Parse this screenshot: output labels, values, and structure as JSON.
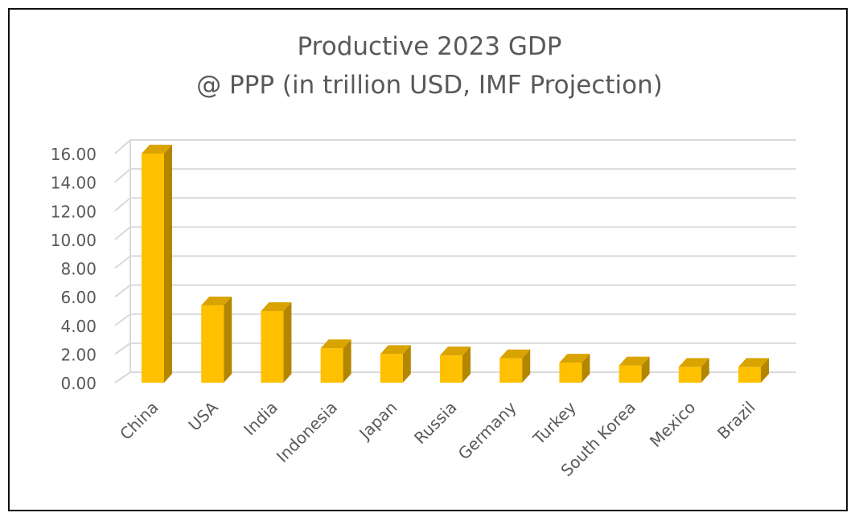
{
  "chart_data": {
    "type": "bar",
    "title_lines": [
      "Productive 2023 GDP",
      "@ PPP (in trillion USD, IMF Projection)"
    ],
    "categories": [
      "China",
      "USA",
      "India",
      "Indonesia",
      "Japan",
      "Russia",
      "Germany",
      "Turkey",
      "South Korea",
      "Mexico",
      "Brazil"
    ],
    "values": [
      16.0,
      5.4,
      5.0,
      2.4,
      2.0,
      1.9,
      1.7,
      1.4,
      1.2,
      1.1,
      1.1
    ],
    "y_ticks": [
      "0.00",
      "2.00",
      "4.00",
      "6.00",
      "8.00",
      "10.00",
      "12.00",
      "14.00",
      "16.00"
    ],
    "ylim": [
      0,
      16
    ],
    "grid": true,
    "legend": "none",
    "style": "3d-column",
    "colors": {
      "bar_front": "#ffc000",
      "bar_side": "#b38600",
      "bar_top": "#d9a300",
      "grid": "#d9d9d9",
      "text": "#595959"
    }
  }
}
